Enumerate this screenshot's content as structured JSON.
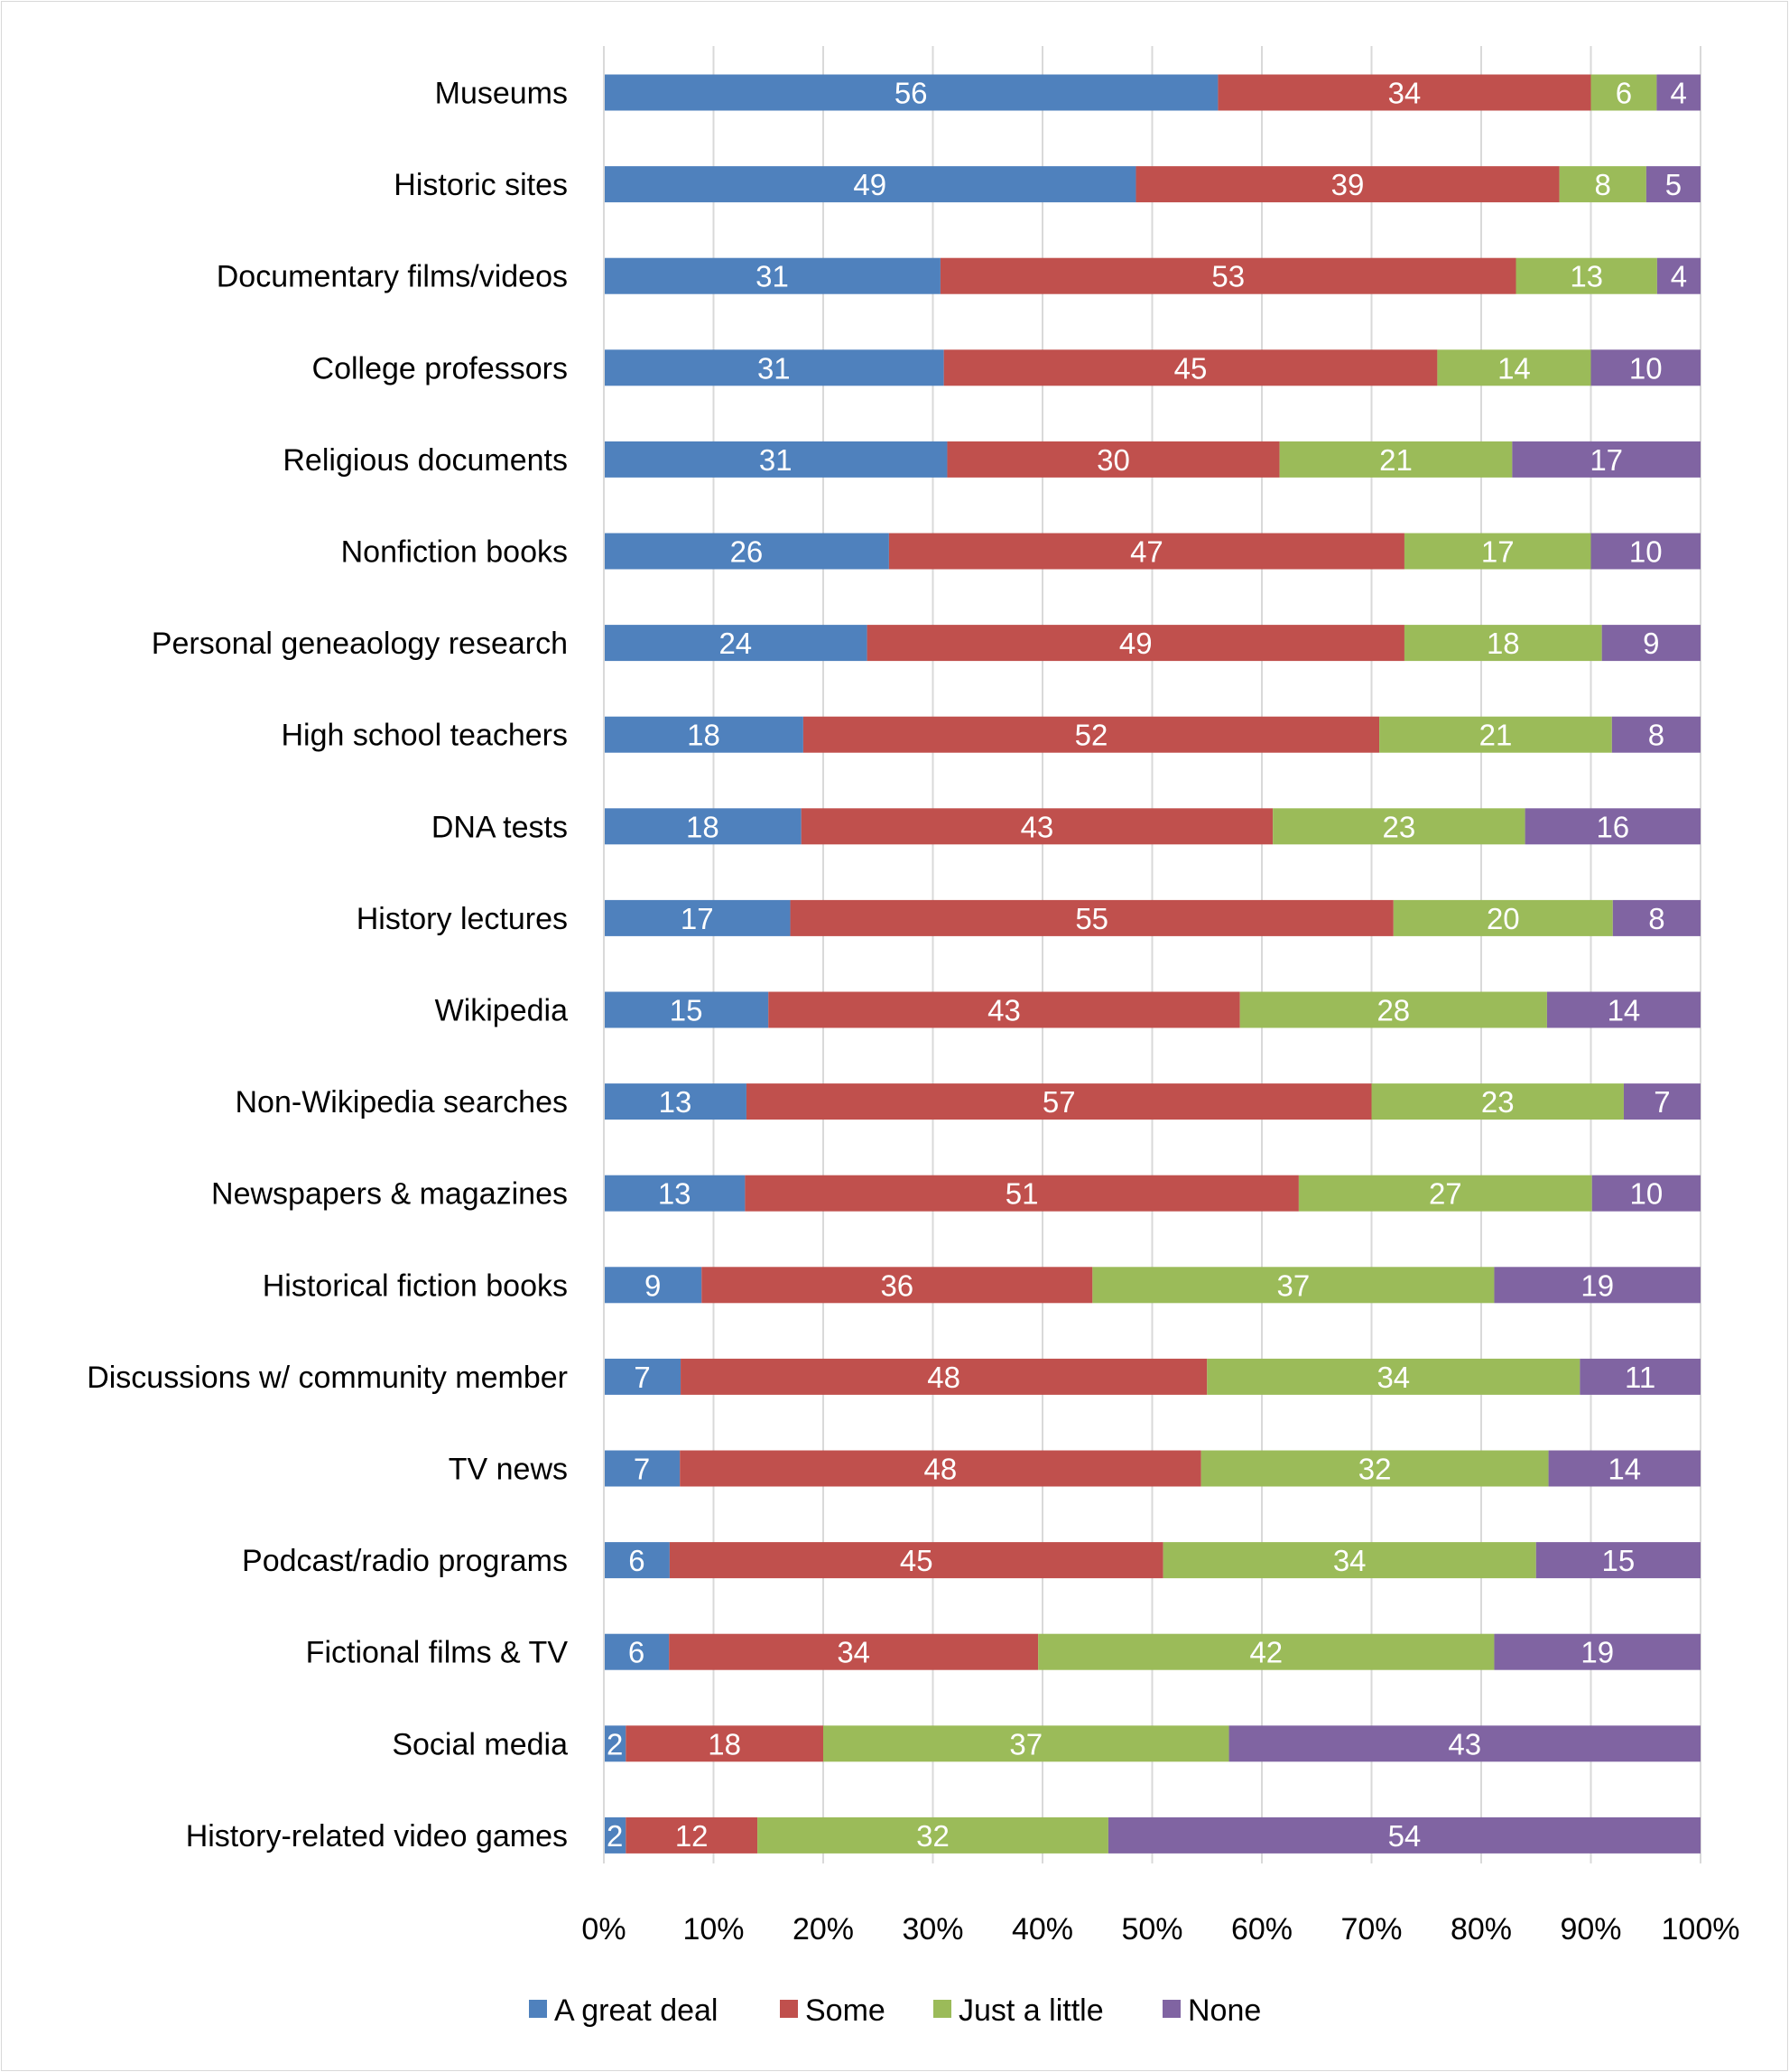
{
  "chart_data": {
    "type": "bar",
    "orientation": "horizontal",
    "stacked": "percent",
    "title": "",
    "xlabel": "",
    "ylabel": "",
    "xlim": [
      0,
      100
    ],
    "x_ticks": [
      "0%",
      "10%",
      "20%",
      "30%",
      "40%",
      "50%",
      "60%",
      "70%",
      "80%",
      "90%",
      "100%"
    ],
    "grid": "vertical",
    "legend_position": "bottom",
    "categories": [
      "Museums",
      "Historic sites",
      "Documentary films/videos",
      "College professors",
      "Religious documents",
      "Nonfiction books",
      "Personal geneaology research",
      "High school teachers",
      "DNA tests",
      "History lectures",
      "Wikipedia",
      "Non-Wikipedia searches",
      "Newspapers & magazines",
      "Historical fiction books",
      "Discussions w/ community member",
      "TV news",
      "Podcast/radio programs",
      "Fictional films & TV",
      "Social media",
      "History-related video games"
    ],
    "series": [
      {
        "name": "A great deal",
        "color": "#4F81BD",
        "values": [
          56,
          49,
          31,
          31,
          31,
          26,
          24,
          18,
          18,
          17,
          15,
          13,
          13,
          9,
          7,
          7,
          6,
          6,
          2,
          2
        ]
      },
      {
        "name": "Some",
        "color": "#C0504D",
        "values": [
          34,
          39,
          53,
          45,
          30,
          47,
          49,
          52,
          43,
          55,
          43,
          57,
          51,
          36,
          48,
          48,
          45,
          34,
          18,
          12
        ]
      },
      {
        "name": "Just a little",
        "color": "#9BBB59",
        "values": [
          6,
          8,
          13,
          14,
          21,
          17,
          18,
          21,
          23,
          20,
          28,
          23,
          27,
          37,
          34,
          32,
          34,
          42,
          37,
          32
        ]
      },
      {
        "name": "None",
        "color": "#8064A2",
        "values": [
          4,
          5,
          4,
          10,
          17,
          10,
          9,
          8,
          16,
          8,
          14,
          7,
          10,
          19,
          11,
          14,
          15,
          19,
          43,
          54
        ]
      }
    ]
  }
}
